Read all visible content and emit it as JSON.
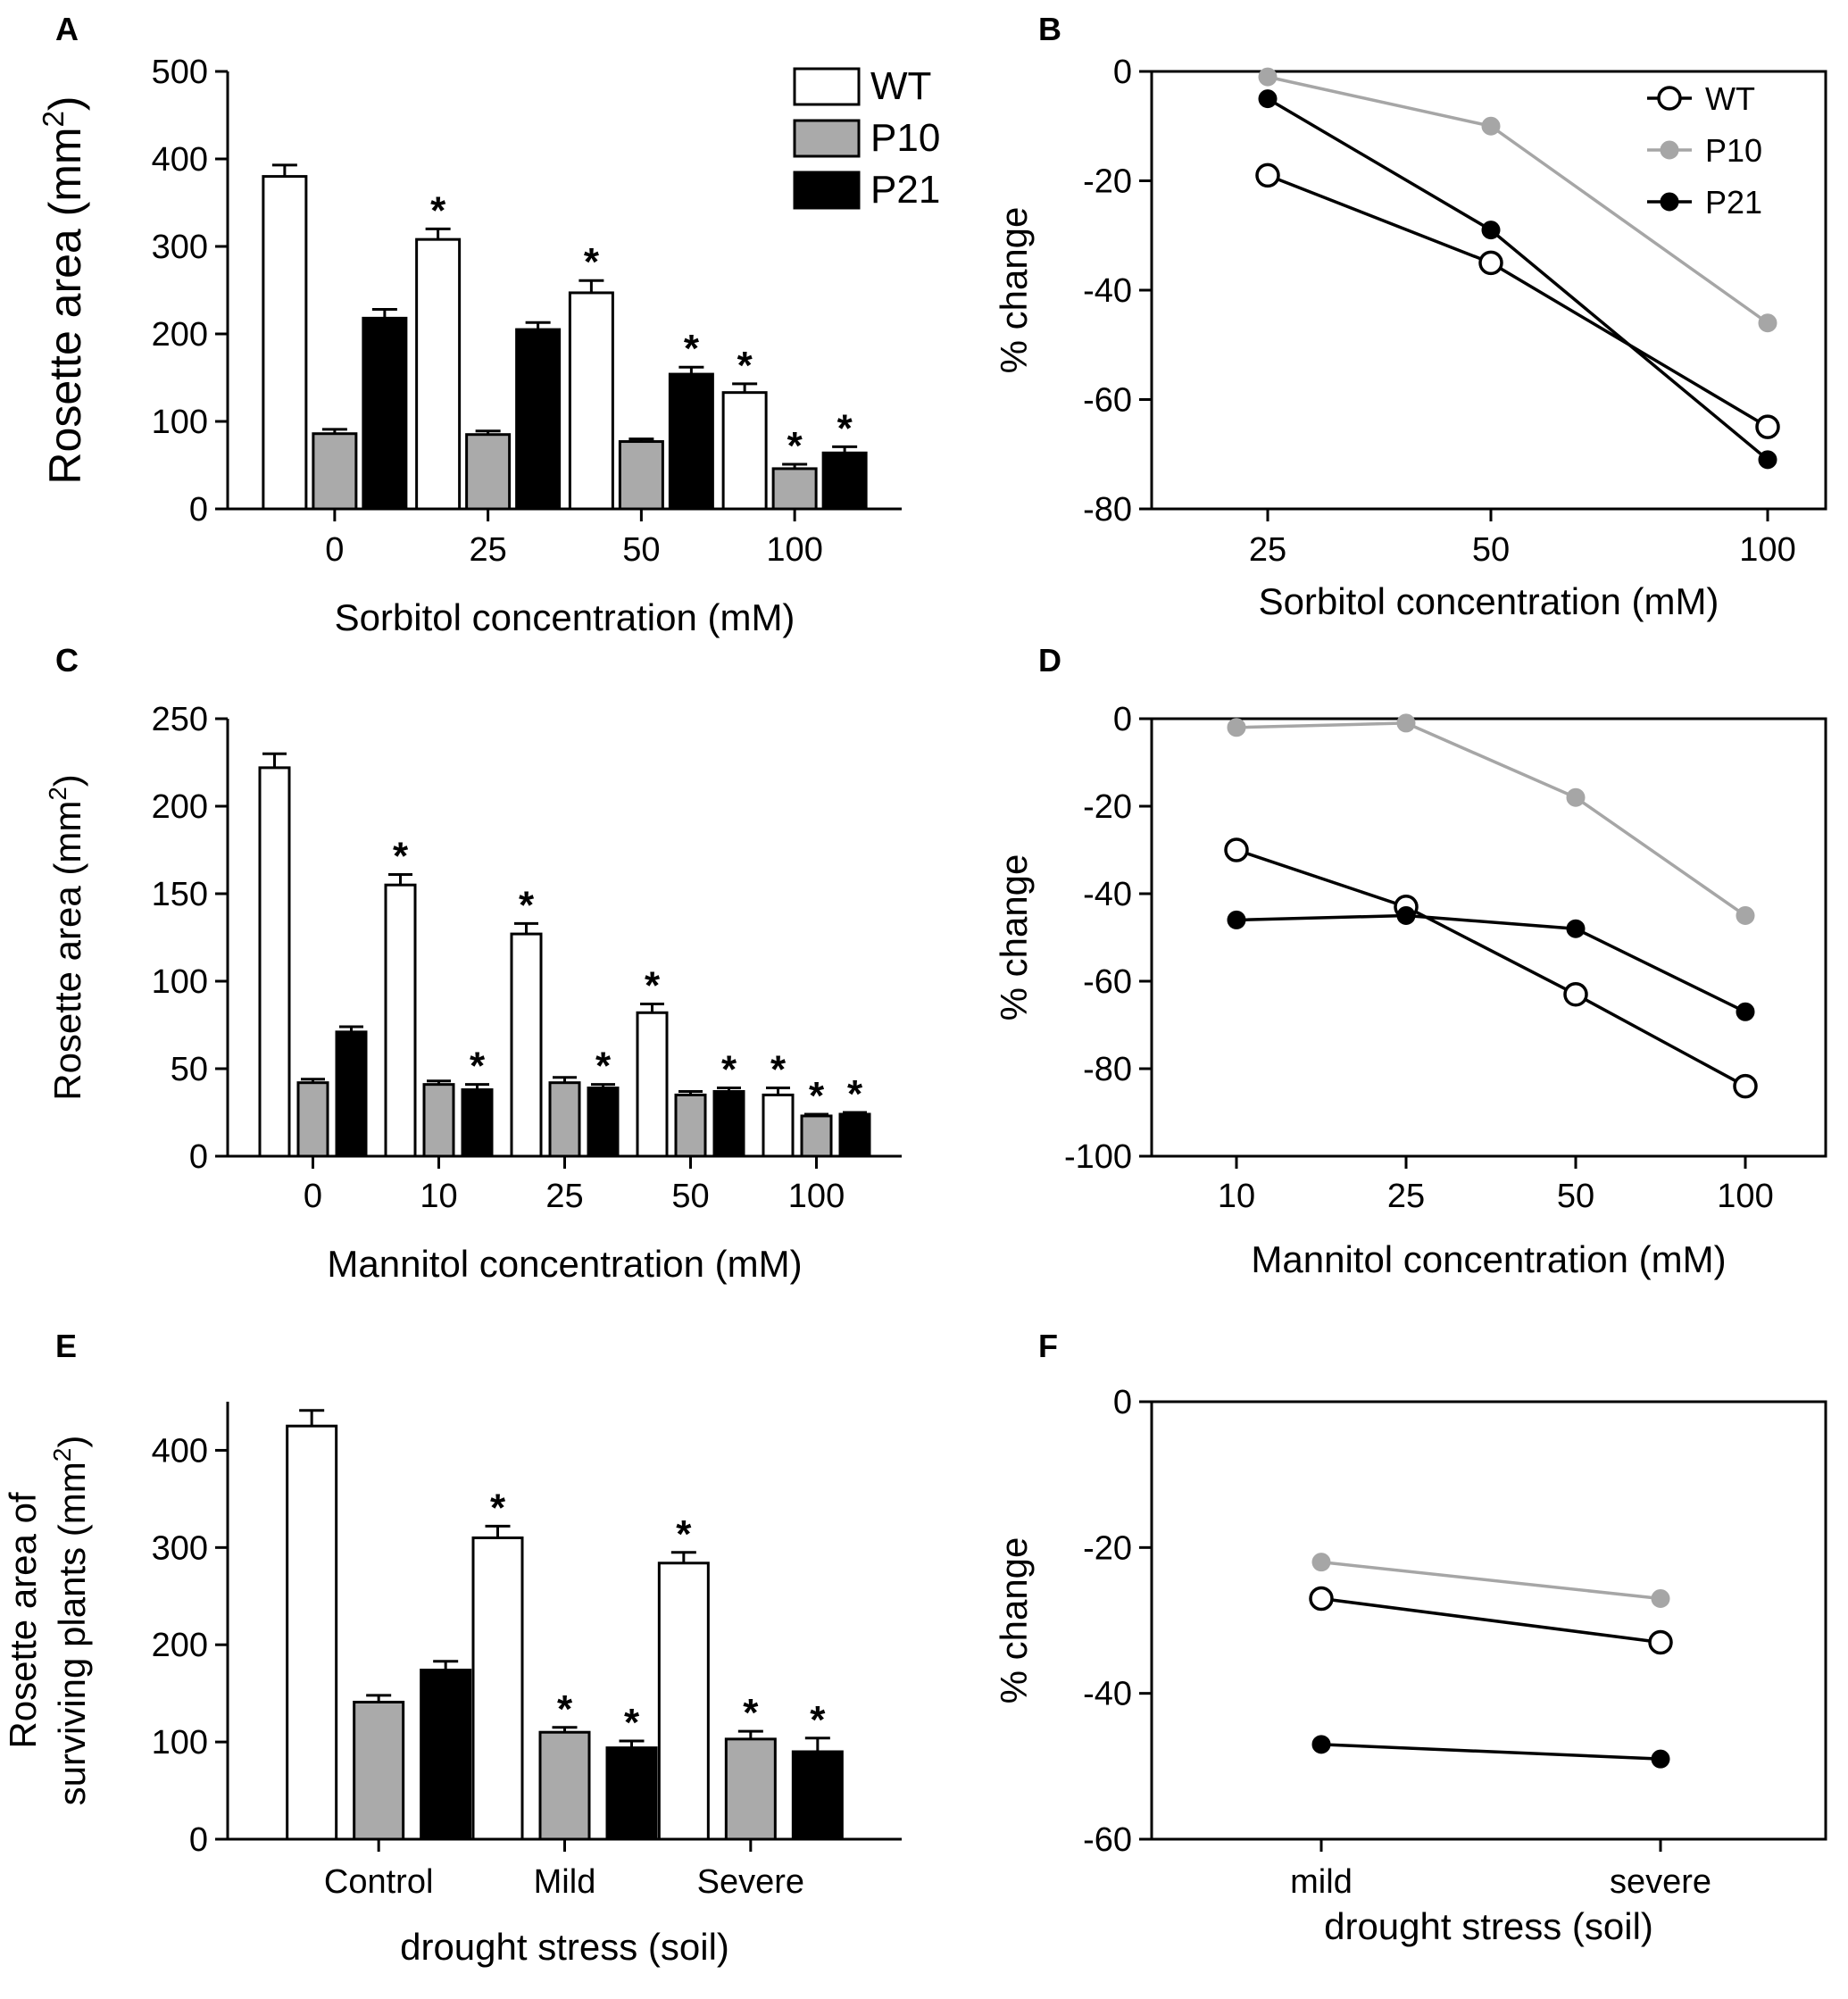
{
  "figure": {
    "panels": [
      "A",
      "B",
      "C",
      "D",
      "E",
      "F"
    ]
  },
  "colors": {
    "WT": "#ffffff",
    "P10": "#aaaaaa",
    "P21": "#000000",
    "P10_line": "#a6a6a6",
    "axis": "#000000"
  },
  "chart_data": [
    {
      "panel": "A",
      "type": "bar",
      "xlabel": "Sorbitol concentration (mM)",
      "ylabel": "Rosette area (mm²)",
      "ylabel_main": "Rosette area (mm",
      "ylabel_sup": "2",
      "ylabel_end": ")",
      "ylim": [
        0,
        500
      ],
      "yticks": [
        0,
        100,
        200,
        300,
        400,
        500
      ],
      "categories": [
        "0",
        "25",
        "50",
        "100"
      ],
      "series": [
        {
          "name": "WT",
          "values": [
            380,
            308,
            247,
            133
          ],
          "errors": [
            13,
            12,
            14,
            10
          ],
          "sig": [
            false,
            true,
            true,
            true
          ]
        },
        {
          "name": "P10",
          "values": [
            86,
            85,
            77,
            46
          ],
          "errors": [
            5,
            4,
            3,
            5
          ],
          "sig": [
            false,
            false,
            false,
            true
          ]
        },
        {
          "name": "P21",
          "values": [
            218,
            205,
            154,
            64
          ],
          "errors": [
            10,
            8,
            8,
            7
          ],
          "sig": [
            false,
            false,
            true,
            true
          ]
        }
      ],
      "sig_mark": "*",
      "legend": {
        "position": "top-right",
        "entries": [
          "WT",
          "P10",
          "P21"
        ]
      }
    },
    {
      "panel": "B",
      "type": "line",
      "xlabel": "Sorbitol concentration (mM)",
      "ylabel": "% change",
      "ylim": [
        -80,
        0
      ],
      "yticks": [
        0,
        -20,
        -40,
        -60,
        -80
      ],
      "categories": [
        "25",
        "50",
        "100"
      ],
      "series": [
        {
          "name": "WT",
          "values": [
            -19,
            -35,
            -65
          ]
        },
        {
          "name": "P10",
          "values": [
            -1,
            -10,
            -46
          ]
        },
        {
          "name": "P21",
          "values": [
            -5,
            -29,
            -71
          ]
        }
      ],
      "legend": {
        "position": "top-right",
        "entries": [
          "WT",
          "P10",
          "P21"
        ]
      }
    },
    {
      "panel": "C",
      "type": "bar",
      "xlabel": "Mannitol concentration (mM)",
      "ylabel": "Rosette area (mm²)",
      "ylabel_main": "Rosette area (mm",
      "ylabel_sup": "2",
      "ylabel_end": ")",
      "ylim": [
        0,
        250
      ],
      "yticks": [
        0,
        50,
        100,
        150,
        200,
        250
      ],
      "categories": [
        "0",
        "10",
        "25",
        "50",
        "100"
      ],
      "series": [
        {
          "name": "WT",
          "values": [
            222,
            155,
            127,
            82,
            35
          ],
          "errors": [
            8,
            6,
            6,
            5,
            4
          ],
          "sig": [
            false,
            true,
            true,
            true,
            true
          ]
        },
        {
          "name": "P10",
          "values": [
            42,
            41,
            42,
            35,
            23
          ],
          "errors": [
            2,
            2,
            3,
            2,
            1
          ],
          "sig": [
            false,
            false,
            false,
            false,
            true
          ]
        },
        {
          "name": "P21",
          "values": [
            71,
            38,
            39,
            37,
            24
          ],
          "errors": [
            3,
            3,
            2,
            2,
            1
          ],
          "sig": [
            false,
            true,
            true,
            true,
            true
          ]
        }
      ],
      "sig_mark": "*"
    },
    {
      "panel": "D",
      "type": "line",
      "xlabel": "Mannitol concentration (mM)",
      "ylabel": "% change",
      "ylim": [
        -100,
        0
      ],
      "yticks": [
        0,
        -20,
        -40,
        -60,
        -80,
        -100
      ],
      "categories": [
        "10",
        "25",
        "50",
        "100"
      ],
      "series": [
        {
          "name": "WT",
          "values": [
            -30,
            -43,
            -63,
            -84
          ]
        },
        {
          "name": "P10",
          "values": [
            -2,
            -1,
            -18,
            -45
          ]
        },
        {
          "name": "P21",
          "values": [
            -46,
            -45,
            -48,
            -67
          ]
        }
      ]
    },
    {
      "panel": "E",
      "type": "bar",
      "xlabel": "drought stress (soil)",
      "ylabel": "Rosette area of surviving plants (mm²)",
      "ylabel_line1": "Rosette area of",
      "ylabel_main": "surviving plants (mm",
      "ylabel_sup": "2",
      "ylabel_end": ")",
      "ylim": [
        0,
        450
      ],
      "yticks": [
        0,
        100,
        200,
        300,
        400
      ],
      "categories": [
        "Control",
        "Mild",
        "Severe"
      ],
      "series": [
        {
          "name": "WT",
          "values": [
            425,
            310,
            284
          ],
          "errors": [
            16,
            12,
            11
          ],
          "sig": [
            false,
            true,
            true
          ]
        },
        {
          "name": "P10",
          "values": [
            141,
            110,
            103
          ],
          "errors": [
            7,
            5,
            8
          ],
          "sig": [
            false,
            true,
            true
          ]
        },
        {
          "name": "P21",
          "values": [
            174,
            94,
            90
          ],
          "errors": [
            9,
            7,
            14
          ],
          "sig": [
            false,
            true,
            true
          ]
        }
      ],
      "sig_mark": "*"
    },
    {
      "panel": "F",
      "type": "line",
      "xlabel": "drought stress (soil)",
      "ylabel": "% change",
      "ylim": [
        -60,
        0
      ],
      "yticks": [
        0,
        -20,
        -40,
        -60
      ],
      "categories": [
        "mild",
        "severe"
      ],
      "series": [
        {
          "name": "WT",
          "values": [
            -27,
            -33
          ]
        },
        {
          "name": "P10",
          "values": [
            -22,
            -27
          ]
        },
        {
          "name": "P21",
          "values": [
            -47,
            -49
          ]
        }
      ]
    }
  ]
}
